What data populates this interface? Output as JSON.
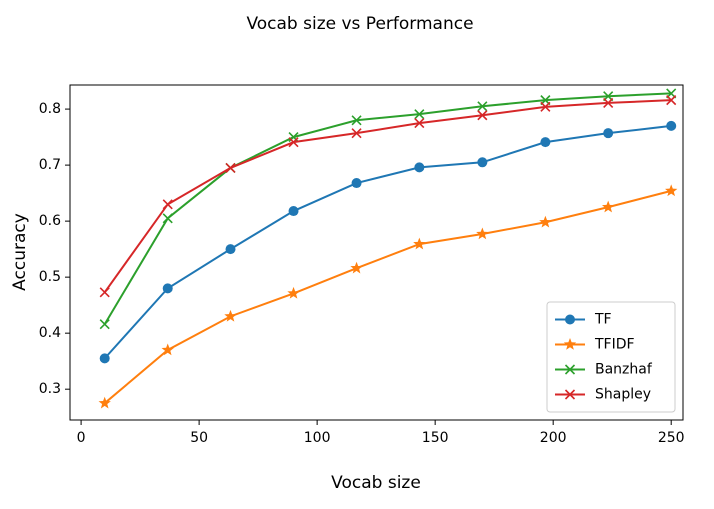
{
  "chart_data": {
    "type": "line",
    "title": "Vocab size vs Performance",
    "x_label": "Vocab size",
    "y_label": "Accuracy",
    "x": [
      10,
      36.7,
      63.3,
      90,
      116.7,
      143.3,
      170,
      196.7,
      223.3,
      250
    ],
    "series": [
      {
        "name": "TF",
        "color": "#1f77b4",
        "marker": "circle",
        "values": [
          0.355,
          0.48,
          0.55,
          0.618,
          0.668,
          0.696,
          0.705,
          0.741,
          0.757,
          0.77
        ]
      },
      {
        "name": "TFIDF",
        "color": "#ff7f0e",
        "marker": "star",
        "values": [
          0.275,
          0.37,
          0.43,
          0.471,
          0.516,
          0.559,
          0.577,
          0.598,
          0.625,
          0.654
        ]
      },
      {
        "name": "Banzhaf",
        "color": "#2ca02c",
        "marker": "x",
        "values": [
          0.416,
          0.605,
          0.695,
          0.75,
          0.78,
          0.791,
          0.805,
          0.816,
          0.823,
          0.828
        ]
      },
      {
        "name": "Shapley",
        "color": "#d62728",
        "marker": "x",
        "values": [
          0.473,
          0.63,
          0.695,
          0.741,
          0.757,
          0.775,
          0.789,
          0.804,
          0.811,
          0.816
        ]
      }
    ],
    "xlim": [
      -4.7,
      255
    ],
    "xticks": [
      0,
      50,
      100,
      150,
      200,
      250
    ],
    "ylim": [
      0.245,
      0.843
    ],
    "yticks": [
      0.3,
      0.4,
      0.5,
      0.6,
      0.7,
      0.8
    ],
    "grid": false,
    "legend_position": "lower right"
  }
}
